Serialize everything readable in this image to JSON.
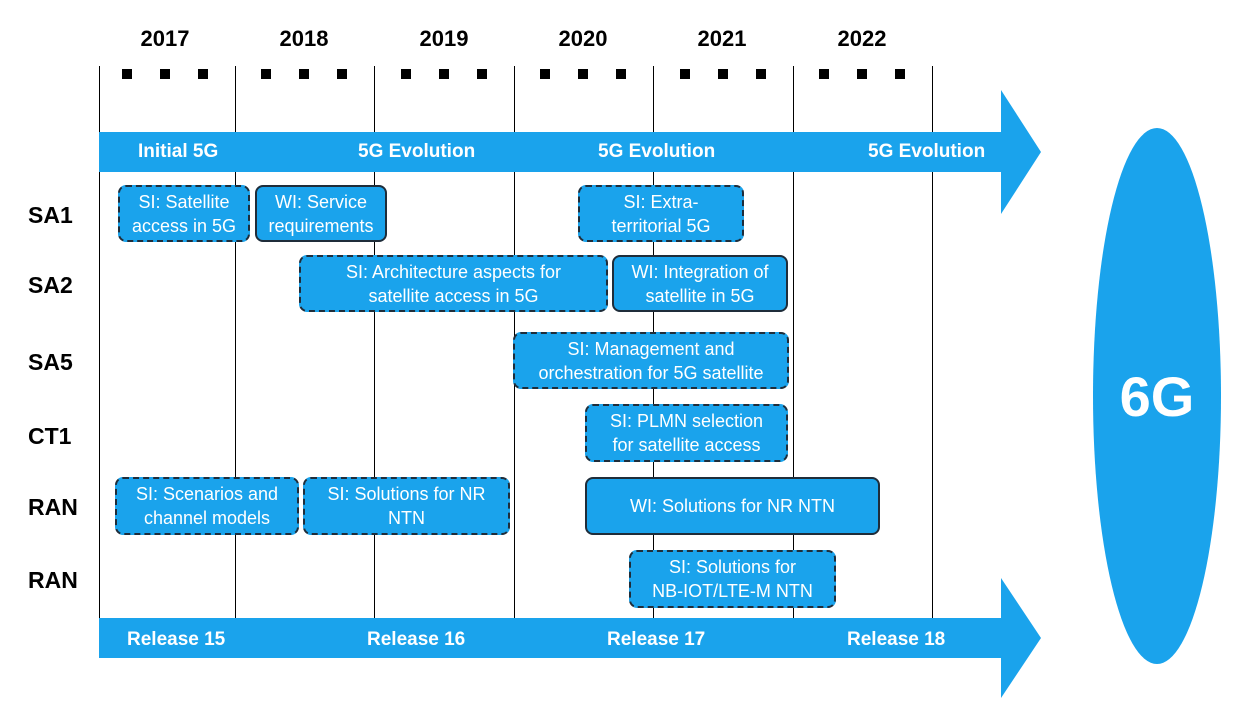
{
  "years": [
    "2017",
    "2018",
    "2019",
    "2020",
    "2021",
    "2022"
  ],
  "phase_band": {
    "color": "#1aa3ec",
    "labels": [
      "Initial 5G",
      "5G Evolution",
      "5G Evolution",
      "5G Evolution"
    ]
  },
  "release_band": {
    "color": "#1aa3ec",
    "labels": [
      "Release 15",
      "Release 16",
      "Release 17",
      "Release 18"
    ]
  },
  "rows": [
    "SA1",
    "SA2",
    "SA5",
    "CT1",
    "RAN",
    "RAN"
  ],
  "boxes": {
    "sa1_si_satellite": [
      "SI: Satellite",
      "access in 5G"
    ],
    "sa1_wi_service": [
      "WI: Service",
      "requirements"
    ],
    "sa1_si_extra": [
      "SI: Extra-",
      "territorial 5G"
    ],
    "sa2_si_arch": [
      "SI: Architecture aspects for",
      "satellite access in 5G"
    ],
    "sa2_wi_integration": [
      "WI: Integration of",
      "satellite in 5G"
    ],
    "sa5_si_mgmt": [
      "SI: Management and",
      "orchestration for 5G satellite"
    ],
    "ct1_si_plmn": [
      "SI: PLMN selection",
      "for satellite access"
    ],
    "ran_si_scenarios": [
      "SI: Scenarios and",
      "channel models"
    ],
    "ran_si_solutions_nr": [
      "SI: Solutions for NR",
      "NTN"
    ],
    "ran_wi_solutions_nr": [
      "WI: Solutions for NR NTN"
    ],
    "ran_si_solutions_nbiot": [
      "SI: Solutions for",
      "NB-IOT/LTE-M NTN"
    ]
  },
  "future": "6G"
}
